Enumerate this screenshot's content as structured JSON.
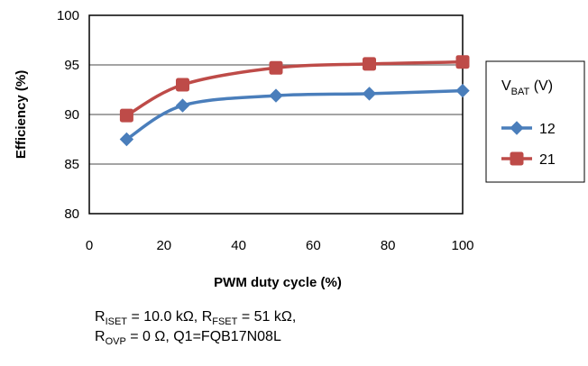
{
  "chart_data": {
    "type": "line",
    "xlabel": "PWM duty cycle  (%)",
    "ylabel": "Efficiency  (%)",
    "xlim": [
      0,
      100
    ],
    "ylim": [
      80,
      100
    ],
    "xticks": [
      0,
      20,
      40,
      60,
      80,
      100
    ],
    "yticks": [
      80,
      85,
      90,
      95,
      100
    ],
    "grid": "horizontal",
    "legend": {
      "position": "right",
      "title_main": "V",
      "title_sub": "BAT",
      "title_suffix": " (V)"
    },
    "series": [
      {
        "name": "12",
        "color": "#4a7ebb",
        "marker": "diamond",
        "x": [
          10,
          25,
          50,
          75,
          100
        ],
        "y": [
          87.5,
          90.9,
          91.9,
          92.1,
          92.4
        ]
      },
      {
        "name": "21",
        "color": "#be4b48",
        "marker": "square",
        "x": [
          10,
          25,
          50,
          75,
          100
        ],
        "y": [
          89.9,
          93.0,
          94.7,
          95.1,
          95.3
        ]
      }
    ]
  },
  "note": {
    "line1": [
      {
        "t": "R"
      },
      {
        "t": "ISET",
        "sub": true
      },
      {
        "t": " = 10.0 kΩ, R"
      },
      {
        "t": "FSET",
        "sub": true
      },
      {
        "t": " = 51 kΩ,"
      }
    ],
    "line2": [
      {
        "t": "R"
      },
      {
        "t": "OVP",
        "sub": true
      },
      {
        "t": " = 0 Ω, Q1=FQB17N08L"
      }
    ]
  }
}
